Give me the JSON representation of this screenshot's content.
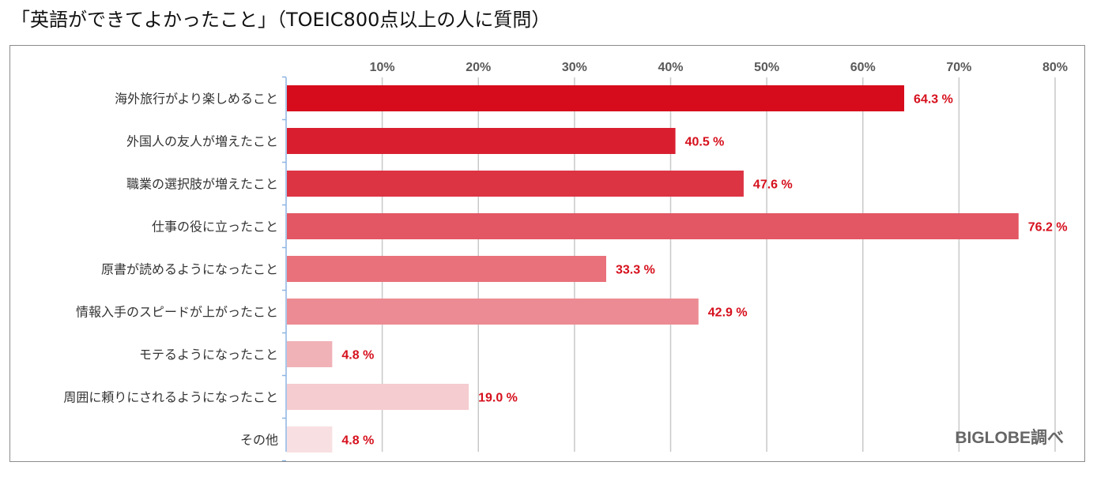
{
  "title": "「英語ができてよかったこと」（TOEIC800点以上の人に質問）",
  "source": "BIGLOBE調べ",
  "colors": {
    "value_label": "#d6101d",
    "tick_label": "#595959",
    "grid": "#c8c8c8",
    "axis": "#8db3e2"
  },
  "chart_data": {
    "type": "bar",
    "orientation": "horizontal",
    "title": "「英語ができてよかったこと」（TOEIC800点以上の人に質問）",
    "xlim": [
      0,
      80
    ],
    "xticks": [
      10,
      20,
      30,
      40,
      50,
      60,
      70,
      80
    ],
    "xtick_labels": [
      "10%",
      "20%",
      "30%",
      "40%",
      "50%",
      "60%",
      "70%",
      "80%"
    ],
    "xaxis_position": "top",
    "grid": true,
    "legend": "none",
    "categories": [
      "海外旅行がより楽しめること",
      "外国人の友人が増えたこと",
      "職業の選択肢が増えたこと",
      "仕事の役に立ったこと",
      "原書が読めるようになったこと",
      "情報入手のスピードが上がったこと",
      "モテるようになったこと",
      "周囲に頼りにされるようになったこと",
      "その他"
    ],
    "values": [
      64.3,
      40.5,
      47.6,
      76.2,
      33.3,
      42.9,
      4.8,
      19.0,
      4.8
    ],
    "value_labels": [
      "64.3 %",
      "40.5 %",
      "47.6 %",
      "76.2 %",
      "33.3 %",
      "42.9 %",
      "4.8 %",
      "19.0 %",
      "4.8 %"
    ],
    "bar_colors": [
      "#d60b1c",
      "#d91f2f",
      "#dd3444",
      "#e35663",
      "#e8717b",
      "#ec8b93",
      "#f1b2b7",
      "#f5ccd0",
      "#f8e0e2"
    ]
  }
}
